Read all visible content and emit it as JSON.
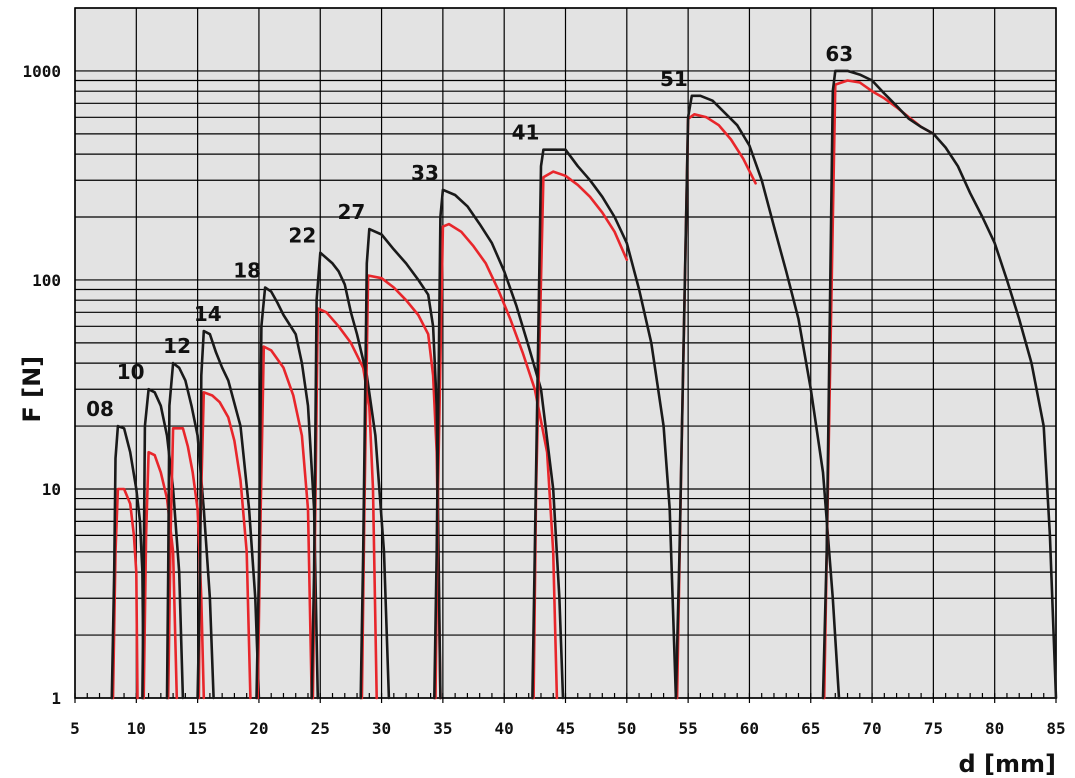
{
  "chart_data": {
    "type": "line",
    "title": "",
    "xlabel": "d [mm]",
    "ylabel": "F [N]",
    "xlim": [
      5,
      85
    ],
    "ylim": [
      1,
      2000
    ],
    "y_scale": "log",
    "grid": true,
    "x_ticks": [
      5,
      10,
      15,
      20,
      25,
      30,
      35,
      40,
      45,
      50,
      55,
      60,
      65,
      70,
      75,
      80,
      85
    ],
    "x_tick_labels": [
      "5",
      "10",
      "15",
      "20",
      "25",
      "30",
      "35",
      "40",
      "45",
      "50",
      "55",
      "60",
      "65",
      "70",
      "75",
      "80",
      "85"
    ],
    "y_ticks": [
      1,
      10,
      100,
      1000
    ],
    "y_tick_labels": [
      "1",
      "10",
      "100",
      "1000"
    ],
    "colors": {
      "upper": "#1a1a1a",
      "lower": "#e8262b",
      "grid": "#000000",
      "background": "#e3e3e3"
    },
    "series": [
      {
        "label": "08",
        "upper": [
          [
            8.0,
            1
          ],
          [
            8.2,
            4
          ],
          [
            8.3,
            14
          ],
          [
            8.5,
            20
          ],
          [
            9.0,
            19.5
          ],
          [
            9.5,
            15
          ],
          [
            10.0,
            10
          ],
          [
            10.3,
            7
          ],
          [
            10.5,
            4
          ],
          [
            10.6,
            1
          ]
        ],
        "lower": [
          [
            8.1,
            1
          ],
          [
            8.3,
            5
          ],
          [
            8.5,
            10
          ],
          [
            9.0,
            10
          ],
          [
            9.5,
            8.5
          ],
          [
            9.8,
            6
          ],
          [
            10.0,
            4
          ],
          [
            10.1,
            1
          ]
        ]
      },
      {
        "label": "10",
        "upper": [
          [
            10.5,
            1
          ],
          [
            10.6,
            4
          ],
          [
            10.7,
            20
          ],
          [
            11.0,
            30
          ],
          [
            11.5,
            29
          ],
          [
            12.0,
            25
          ],
          [
            12.5,
            18
          ],
          [
            13.0,
            10
          ],
          [
            13.5,
            4
          ],
          [
            13.8,
            1
          ]
        ],
        "lower": [
          [
            10.6,
            1
          ],
          [
            10.8,
            6
          ],
          [
            11.0,
            15
          ],
          [
            11.5,
            14.5
          ],
          [
            12.0,
            12
          ],
          [
            12.5,
            9
          ],
          [
            13.0,
            5
          ],
          [
            13.3,
            1
          ]
        ]
      },
      {
        "label": "12",
        "upper": [
          [
            12.5,
            1
          ],
          [
            12.6,
            4
          ],
          [
            12.7,
            25
          ],
          [
            13.0,
            40
          ],
          [
            13.5,
            38
          ],
          [
            14.0,
            33
          ],
          [
            14.5,
            25
          ],
          [
            15.0,
            18
          ],
          [
            15.5,
            8
          ],
          [
            16.0,
            3
          ],
          [
            16.3,
            1
          ]
        ],
        "lower": [
          [
            12.6,
            1
          ],
          [
            12.8,
            6
          ],
          [
            13.0,
            19.5
          ],
          [
            13.8,
            19.5
          ],
          [
            14.2,
            16
          ],
          [
            14.6,
            12
          ],
          [
            15.0,
            8
          ],
          [
            15.3,
            3
          ],
          [
            15.5,
            1
          ]
        ]
      },
      {
        "label": "14",
        "upper": [
          [
            15.0,
            1
          ],
          [
            15.2,
            4
          ],
          [
            15.3,
            35
          ],
          [
            15.5,
            57
          ],
          [
            16.0,
            55
          ],
          [
            16.5,
            45
          ],
          [
            17.0,
            38
          ],
          [
            17.5,
            33
          ],
          [
            18.5,
            20
          ],
          [
            19.2,
            8
          ],
          [
            19.7,
            3
          ],
          [
            20.0,
            1
          ]
        ],
        "lower": [
          [
            15.1,
            1
          ],
          [
            15.2,
            6
          ],
          [
            15.5,
            29
          ],
          [
            16.2,
            28
          ],
          [
            16.8,
            26
          ],
          [
            17.5,
            22
          ],
          [
            18.0,
            17
          ],
          [
            18.5,
            11
          ],
          [
            19.0,
            5
          ],
          [
            19.3,
            1
          ]
        ]
      },
      {
        "label": "18",
        "upper": [
          [
            19.8,
            1
          ],
          [
            20.0,
            4
          ],
          [
            20.2,
            60
          ],
          [
            20.5,
            92
          ],
          [
            21.0,
            88
          ],
          [
            21.5,
            78
          ],
          [
            22.0,
            68
          ],
          [
            23.0,
            55
          ],
          [
            23.5,
            40
          ],
          [
            24.0,
            25
          ],
          [
            24.5,
            8
          ],
          [
            24.8,
            1
          ]
        ],
        "lower": [
          [
            19.9,
            1
          ],
          [
            20.1,
            6
          ],
          [
            20.4,
            48
          ],
          [
            21.0,
            46
          ],
          [
            22.0,
            38
          ],
          [
            22.8,
            28
          ],
          [
            23.5,
            18
          ],
          [
            24.0,
            8
          ],
          [
            24.3,
            1
          ]
        ]
      },
      {
        "label": "22",
        "upper": [
          [
            24.3,
            1
          ],
          [
            24.5,
            4
          ],
          [
            24.7,
            80
          ],
          [
            25.0,
            135
          ],
          [
            26.0,
            120
          ],
          [
            26.5,
            110
          ],
          [
            27.0,
            95
          ],
          [
            27.5,
            70
          ],
          [
            28.0,
            55
          ],
          [
            28.8,
            35
          ],
          [
            29.5,
            18
          ],
          [
            30.2,
            5
          ],
          [
            30.6,
            1
          ]
        ],
        "lower": [
          [
            24.4,
            1
          ],
          [
            24.6,
            8
          ],
          [
            24.8,
            73
          ],
          [
            25.5,
            70
          ],
          [
            26.5,
            60
          ],
          [
            27.5,
            50
          ],
          [
            28.5,
            38
          ],
          [
            29.0,
            25
          ],
          [
            29.3,
            10
          ],
          [
            29.6,
            1
          ]
        ]
      },
      {
        "label": "27",
        "upper": [
          [
            28.3,
            1
          ],
          [
            28.5,
            5
          ],
          [
            28.8,
            120
          ],
          [
            29.0,
            175
          ],
          [
            30.0,
            165
          ],
          [
            31.0,
            140
          ],
          [
            32.0,
            120
          ],
          [
            33.0,
            100
          ],
          [
            33.8,
            85
          ],
          [
            34.2,
            60
          ],
          [
            34.5,
            25
          ],
          [
            34.8,
            1
          ]
        ],
        "lower": [
          [
            28.4,
            1
          ],
          [
            28.6,
            8
          ],
          [
            28.9,
            105
          ],
          [
            30.0,
            102
          ],
          [
            31.0,
            92
          ],
          [
            32.0,
            80
          ],
          [
            33.0,
            68
          ],
          [
            33.8,
            55
          ],
          [
            34.2,
            35
          ],
          [
            34.5,
            15
          ],
          [
            34.8,
            1
          ]
        ]
      },
      {
        "label": "33",
        "upper": [
          [
            34.3,
            1
          ],
          [
            34.5,
            5
          ],
          [
            34.8,
            200
          ],
          [
            35.0,
            270
          ],
          [
            36.0,
            255
          ],
          [
            37.0,
            225
          ],
          [
            38.0,
            185
          ],
          [
            39.0,
            150
          ],
          [
            40.0,
            110
          ],
          [
            41.0,
            75
          ],
          [
            42.0,
            48
          ],
          [
            43.0,
            30
          ],
          [
            44.0,
            10
          ],
          [
            44.5,
            3
          ],
          [
            44.8,
            1
          ]
        ],
        "lower": [
          [
            34.4,
            1
          ],
          [
            34.6,
            10
          ],
          [
            35.0,
            180
          ],
          [
            35.5,
            185
          ],
          [
            36.5,
            170
          ],
          [
            37.5,
            145
          ],
          [
            38.5,
            120
          ],
          [
            39.5,
            90
          ],
          [
            40.5,
            65
          ],
          [
            41.5,
            45
          ],
          [
            42.5,
            30
          ],
          [
            43.5,
            15
          ],
          [
            44.0,
            5
          ],
          [
            44.3,
            1
          ]
        ]
      },
      {
        "label": "41",
        "upper": [
          [
            42.3,
            1
          ],
          [
            42.5,
            5
          ],
          [
            43.0,
            350
          ],
          [
            43.2,
            420
          ],
          [
            45.0,
            420
          ],
          [
            46.0,
            350
          ],
          [
            47.0,
            300
          ],
          [
            48.0,
            250
          ],
          [
            49.0,
            200
          ],
          [
            50.0,
            150
          ],
          [
            51.0,
            90
          ],
          [
            52.0,
            50
          ],
          [
            53.0,
            20
          ],
          [
            53.5,
            8
          ],
          [
            54.0,
            1
          ]
        ],
        "lower": [
          [
            42.4,
            1
          ],
          [
            42.6,
            10
          ],
          [
            43.2,
            310
          ],
          [
            44.0,
            330
          ],
          [
            45.0,
            315
          ],
          [
            46.0,
            285
          ],
          [
            47.0,
            250
          ],
          [
            48.0,
            210
          ],
          [
            49.0,
            170
          ],
          [
            50.0,
            125
          ]
        ]
      },
      {
        "label": "51",
        "upper": [
          [
            54.0,
            1
          ],
          [
            54.3,
            5
          ],
          [
            55.0,
            600
          ],
          [
            55.3,
            760
          ],
          [
            56.0,
            760
          ],
          [
            57.0,
            720
          ],
          [
            58.0,
            630
          ],
          [
            59.0,
            550
          ],
          [
            60.0,
            440
          ],
          [
            61.0,
            300
          ],
          [
            62.0,
            180
          ],
          [
            63.0,
            110
          ],
          [
            64.0,
            65
          ],
          [
            65.0,
            30
          ],
          [
            66.0,
            12
          ],
          [
            66.8,
            3
          ],
          [
            67.3,
            1
          ]
        ],
        "lower": [
          [
            54.1,
            1
          ],
          [
            54.4,
            10
          ],
          [
            55.0,
            590
          ],
          [
            55.5,
            620
          ],
          [
            56.5,
            600
          ],
          [
            57.5,
            550
          ],
          [
            58.5,
            470
          ],
          [
            59.5,
            380
          ],
          [
            60.5,
            290
          ]
        ]
      },
      {
        "label": "63",
        "upper": [
          [
            66.0,
            1
          ],
          [
            66.3,
            5
          ],
          [
            66.8,
            800
          ],
          [
            67.0,
            1000
          ],
          [
            68.0,
            1000
          ],
          [
            69.0,
            960
          ],
          [
            70.0,
            900
          ],
          [
            71.0,
            780
          ],
          [
            72.0,
            680
          ],
          [
            73.0,
            590
          ],
          [
            74.0,
            540
          ],
          [
            75.0,
            500
          ],
          [
            76.0,
            430
          ],
          [
            77.0,
            350
          ],
          [
            78.0,
            260
          ],
          [
            79.0,
            200
          ],
          [
            80.0,
            150
          ],
          [
            81.0,
            100
          ],
          [
            82.0,
            65
          ],
          [
            83.0,
            40
          ],
          [
            84.0,
            20
          ],
          [
            84.5,
            6
          ],
          [
            85.0,
            1
          ]
        ],
        "lower": [
          [
            66.1,
            1
          ],
          [
            66.4,
            10
          ],
          [
            67.0,
            860
          ],
          [
            68.0,
            900
          ],
          [
            69.0,
            880
          ],
          [
            70.0,
            800
          ],
          [
            71.0,
            740
          ],
          [
            72.0,
            670
          ],
          [
            73.0,
            600
          ],
          [
            74.0,
            540
          ],
          [
            75.0,
            500
          ]
        ]
      }
    ]
  }
}
